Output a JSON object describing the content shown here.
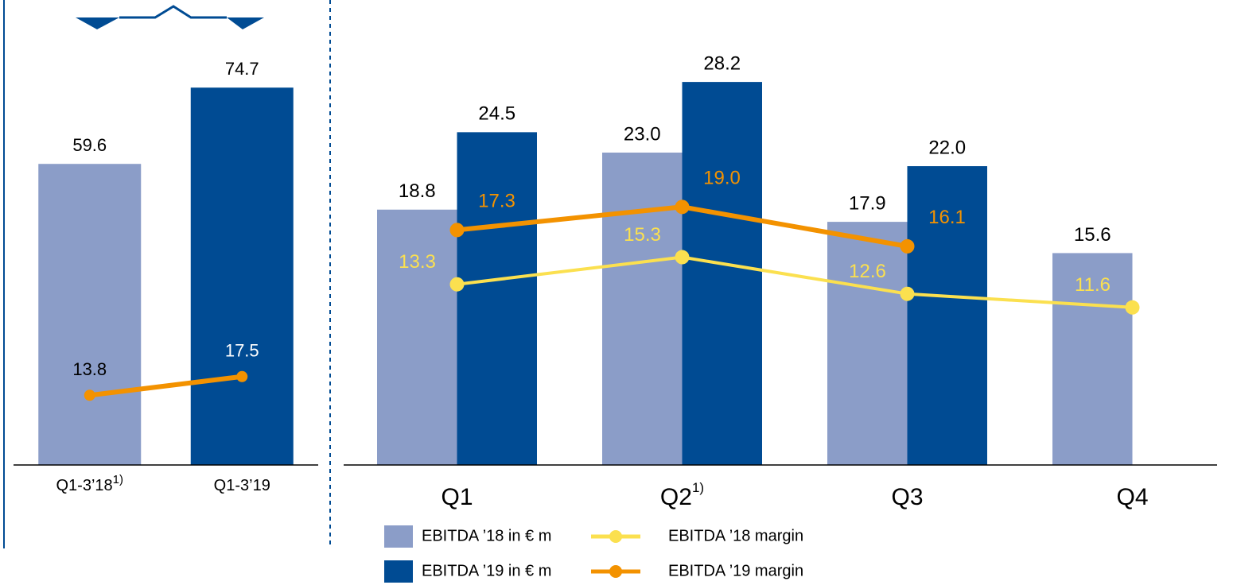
{
  "chart_data": [
    {
      "type": "bar",
      "categories": [
        "Q1-3’18",
        "Q1-3’19"
      ],
      "category_notes": [
        "1)",
        null
      ],
      "ylim": [
        0,
        90
      ],
      "series": [
        {
          "type": "bar",
          "colors": [
            "#8b9dc8",
            "#004b93"
          ],
          "values": [
            59.6,
            74.7
          ],
          "value_labels": [
            "59.6",
            "74.7"
          ]
        },
        {
          "type": "line",
          "color": "#f39200",
          "label_colors": [
            "#000000",
            "#ffffff"
          ],
          "values": [
            13.8,
            17.5
          ],
          "value_labels": [
            "13.8",
            "17.5"
          ]
        }
      ]
    },
    {
      "type": "bar",
      "categories": [
        "Q1",
        "Q2",
        "Q3",
        "Q4"
      ],
      "category_notes": [
        null,
        "1)",
        null,
        null
      ],
      "ylim": [
        0,
        34
      ],
      "series": [
        {
          "name": "EBITDA ’18 in € m",
          "type": "bar",
          "color": "#8b9dc8",
          "values": [
            18.8,
            23.0,
            17.9,
            15.6
          ],
          "value_labels": [
            "18.8",
            "23.0",
            "17.9",
            "15.6"
          ]
        },
        {
          "name": "EBITDA ’19 in € m",
          "type": "bar",
          "color": "#004b93",
          "values": [
            24.5,
            28.2,
            22.0,
            null
          ],
          "value_labels": [
            "24.5",
            "28.2",
            "22.0",
            null
          ]
        },
        {
          "name": "EBITDA ’18 margin",
          "type": "line",
          "color": "#fbe04f",
          "values": [
            13.3,
            15.3,
            12.6,
            11.6
          ],
          "value_labels": [
            "13.3",
            "15.3",
            "12.6",
            "11.6"
          ]
        },
        {
          "name": "EBITDA ’19 margin",
          "type": "line",
          "color": "#f39200",
          "values": [
            17.3,
            19.0,
            16.1,
            null
          ],
          "value_labels": [
            "17.3",
            "19.0",
            "16.1",
            null
          ]
        }
      ],
      "legend": "bottom"
    }
  ]
}
